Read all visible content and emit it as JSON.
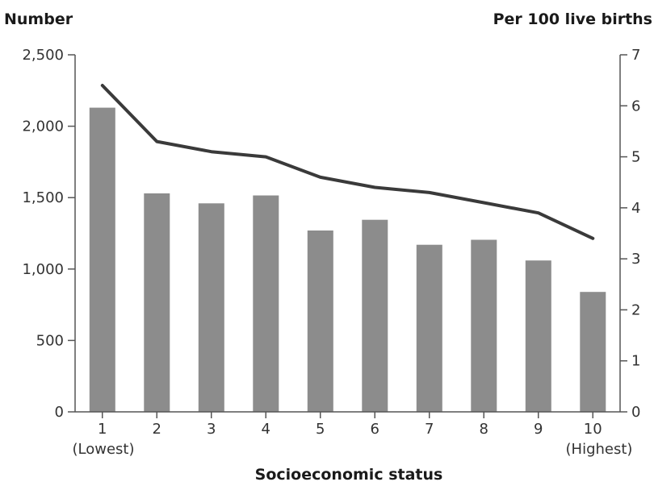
{
  "chart_data": {
    "type": "bar+line",
    "title": "",
    "xlabel": "Socioeconomic status",
    "ylabel_left": "Number",
    "ylabel_right": "Per 100 live births",
    "categories": [
      "1",
      "2",
      "3",
      "4",
      "5",
      "6",
      "7",
      "8",
      "9",
      "10"
    ],
    "category_sublabels": {
      "first": "(Lowest)",
      "last": "(Highest)"
    },
    "ylim_left": [
      0,
      2500
    ],
    "ylim_right": [
      0,
      7
    ],
    "left_ticks": [
      "0",
      "500",
      "1,000",
      "1,500",
      "2,000",
      "2,500"
    ],
    "left_tick_values": [
      0,
      500,
      1000,
      1500,
      2000,
      2500
    ],
    "right_ticks": [
      "0",
      "1",
      "2",
      "3",
      "4",
      "5",
      "6",
      "7"
    ],
    "right_tick_values": [
      0,
      1,
      2,
      3,
      4,
      5,
      6,
      7
    ],
    "series": [
      {
        "kind": "bar",
        "axis": "left",
        "values": [
          2130,
          1530,
          1460,
          1515,
          1270,
          1345,
          1170,
          1205,
          1060,
          840
        ]
      },
      {
        "kind": "line",
        "axis": "right",
        "values": [
          6.4,
          5.3,
          5.1,
          5.0,
          4.6,
          4.4,
          4.3,
          4.1,
          3.9,
          3.4
        ]
      }
    ],
    "colors": {
      "bar": "#8c8c8c",
      "line": "#3a3a3a",
      "axis": "#555555"
    },
    "grid": false
  }
}
